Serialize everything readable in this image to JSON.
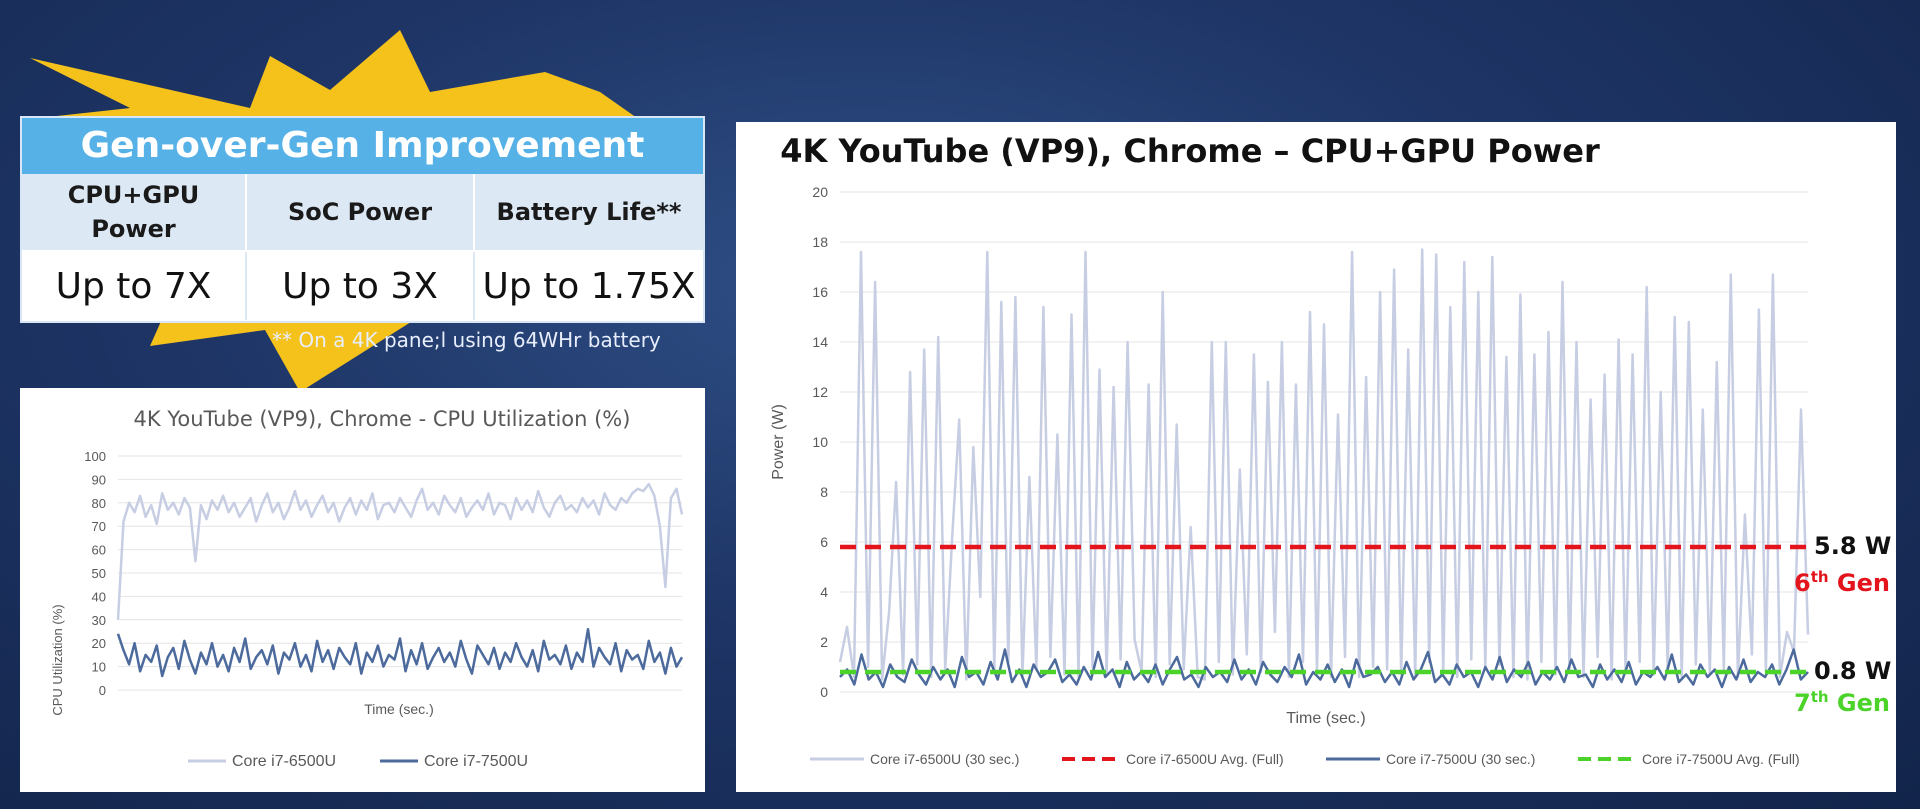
{
  "improvement": {
    "title": "Gen-over-Gen Improvement",
    "headers": [
      "CPU+GPU Power",
      "SoC Power",
      "Battery Life**"
    ],
    "values": [
      "Up to 7X",
      "Up to 3X",
      "Up to 1.75X"
    ],
    "footnote": "** On a 4K pane;l using 64WHr battery"
  },
  "colors": {
    "burst": "#f4c21b",
    "header_bar": "#56b1e7",
    "gen6_avg": "#e3141b",
    "gen7_avg": "#4bd32a",
    "series_light": "#c7cee3",
    "series_dark": "#4c6a9c"
  },
  "annotations": {
    "gen6_value": "5.8 W",
    "gen6_label_num": "6",
    "gen6_label_sup": "th",
    "gen6_label_gen": " Gen",
    "gen7_value": "0.8 W",
    "gen7_label_num": "7",
    "gen7_label_sup": "th",
    "gen7_label_gen": " Gen"
  },
  "chart_data": [
    {
      "type": "line",
      "title": "4K YouTube (VP9), Chrome - CPU Utilization (%)",
      "xlabel": "Time (sec.)",
      "ylabel": "CPU Utilization (%)",
      "ylim": [
        0,
        100
      ],
      "yticks": [
        0,
        10,
        20,
        30,
        40,
        50,
        60,
        70,
        80,
        90,
        100
      ],
      "grid": true,
      "legend_position": "bottom",
      "series": [
        {
          "name": "Core i7-6500U",
          "values": [
            30,
            72,
            80,
            76,
            83,
            74,
            79,
            71,
            84,
            77,
            80,
            75,
            82,
            78,
            55,
            79,
            73,
            81,
            77,
            83,
            76,
            80,
            74,
            78,
            82,
            72,
            79,
            84,
            76,
            80,
            73,
            78,
            85,
            77,
            81,
            74,
            79,
            83,
            76,
            80,
            72,
            78,
            82,
            75,
            81,
            77,
            84,
            73,
            79,
            80,
            76,
            82,
            78,
            74,
            81,
            86,
            77,
            80,
            75,
            83,
            79,
            76,
            82,
            74,
            78,
            81,
            77,
            84,
            75,
            80,
            79,
            73,
            82,
            77,
            81,
            76,
            85,
            78,
            74,
            80,
            83,
            77,
            79,
            76,
            82,
            78,
            81,
            75,
            84,
            79,
            77,
            82,
            80,
            84,
            86,
            85,
            88,
            83,
            70,
            44,
            82,
            86,
            75
          ]
        },
        {
          "name": "Core i7-7500U",
          "values": [
            24,
            17,
            11,
            20,
            8,
            15,
            12,
            19,
            6,
            14,
            18,
            9,
            21,
            13,
            7,
            16,
            11,
            20,
            10,
            15,
            8,
            18,
            12,
            22,
            9,
            14,
            17,
            11,
            19,
            7,
            16,
            13,
            20,
            10,
            15,
            8,
            21,
            12,
            17,
            9,
            18,
            14,
            11,
            20,
            7,
            16,
            12,
            19,
            10,
            15,
            13,
            22,
            8,
            17,
            11,
            20,
            9,
            14,
            18,
            12,
            16,
            10,
            21,
            13,
            7,
            19,
            15,
            11,
            18,
            9,
            16,
            12,
            20,
            14,
            10,
            17,
            8,
            21,
            13,
            15,
            11,
            19,
            9,
            16,
            12,
            26,
            10,
            18,
            14,
            11,
            20,
            8,
            17,
            13,
            15,
            9,
            21,
            12,
            16,
            7,
            18,
            10,
            14
          ]
        }
      ]
    },
    {
      "type": "line",
      "title": "4K YouTube (VP9), Chrome – CPU+GPU Power",
      "xlabel": "Time (sec.)",
      "ylabel": "Power (W)",
      "ylim": [
        0,
        20
      ],
      "yticks": [
        0,
        2,
        4,
        6,
        8,
        10,
        12,
        14,
        16,
        18,
        20
      ],
      "grid": true,
      "legend_position": "bottom",
      "series": [
        {
          "name": "Core i7-6500U (30 sec.)",
          "values": [
            1.2,
            2.6,
            0.6,
            17.6,
            1.0,
            16.4,
            0.5,
            3.2,
            8.4,
            0.7,
            12.8,
            1.1,
            13.7,
            0.6,
            14.2,
            0.9,
            6.2,
            10.9,
            0.5,
            9.8,
            3.8,
            17.6,
            0.8,
            15.6,
            1.2,
            15.8,
            0.6,
            8.6,
            0.9,
            15.4,
            1.4,
            10.3,
            0.7,
            15.1,
            0.6,
            17.6,
            1.0,
            12.9,
            0.7,
            12.2,
            1.3,
            14.0,
            2.1,
            0.8,
            12.3,
            0.6,
            16.0,
            1.1,
            10.7,
            0.9,
            6.6,
            0.6,
            0.5,
            14.0,
            1.2,
            14.0,
            0.7,
            8.9,
            1.5,
            13.5,
            0.8,
            12.4,
            2.4,
            14.0,
            0.6,
            12.3,
            1.2,
            15.2,
            0.8,
            14.7,
            0.6,
            11.1,
            1.4,
            17.6,
            0.6,
            12.6,
            1.0,
            16.0,
            0.9,
            16.9,
            0.7,
            13.7,
            0.6,
            17.7,
            1.2,
            17.5,
            0.8,
            15.4,
            0.6,
            17.2,
            1.3,
            16.0,
            0.9,
            17.4,
            1.1,
            13.4,
            0.6,
            15.9,
            0.5,
            13.5,
            1.2,
            14.4,
            0.7,
            16.4,
            0.9,
            14.0,
            0.6,
            11.7,
            1.4,
            12.7,
            0.5,
            14.1,
            0.8,
            13.5,
            1.2,
            16.2,
            0.7,
            12.0,
            0.9,
            15.0,
            0.6,
            14.8,
            1.1,
            11.3,
            0.7,
            13.2,
            0.9,
            16.7,
            0.6,
            7.1,
            1.5,
            15.3,
            0.8,
            16.7,
            0.6,
            2.4,
            1.6,
            11.3,
            2.3
          ]
        },
        {
          "name": "Core i7-6500U Avg. (Full)",
          "values": [
            5.8,
            5.8
          ]
        },
        {
          "name": "Core i7-7500U (30 sec.)",
          "values": [
            0.6,
            0.9,
            0.3,
            1.5,
            0.5,
            0.8,
            0.2,
            1.1,
            0.6,
            0.4,
            1.3,
            0.7,
            0.3,
            1.0,
            0.5,
            0.9,
            0.2,
            1.4,
            0.6,
            0.8,
            0.3,
            1.2,
            0.5,
            1.7,
            0.4,
            0.9,
            0.2,
            1.1,
            0.6,
            0.8,
            1.3,
            0.4,
            0.7,
            0.3,
            1.0,
            0.5,
            1.6,
            0.6,
            0.9,
            0.2,
            1.2,
            0.5,
            0.8,
            0.4,
            1.1,
            0.3,
            0.9,
            1.4,
            0.5,
            0.7,
            0.2,
            1.0,
            0.6,
            0.8,
            0.4,
            1.3,
            0.5,
            0.9,
            0.3,
            1.2,
            0.7,
            0.4,
            1.0,
            0.6,
            1.5,
            0.3,
            0.8,
            0.5,
            1.1,
            0.4,
            0.9,
            0.2,
            1.3,
            0.6,
            0.7,
            1.0,
            0.4,
            0.8,
            0.3,
            1.2,
            0.5,
            0.9,
            1.6,
            0.4,
            0.7,
            0.3,
            1.1,
            0.6,
            0.8,
            0.2,
            1.0,
            0.5,
            1.4,
            0.4,
            0.9,
            0.6,
            1.2,
            0.3,
            0.8,
            0.5,
            1.0,
            0.4,
            1.3,
            0.6,
            0.7,
            0.2,
            1.1,
            0.5,
            0.9,
            0.4,
            1.2,
            0.3,
            0.8,
            0.6,
            1.0,
            0.5,
            1.5,
            0.4,
            0.7,
            0.3,
            1.1,
            0.6,
            0.9,
            0.2,
            1.0,
            0.5,
            1.3,
            0.4,
            0.8,
            0.6,
            1.1,
            0.3,
            0.9,
            1.7,
            0.5,
            0.8
          ]
        },
        {
          "name": "Core i7-7500U Avg. (Full)",
          "values": [
            0.8,
            0.8
          ]
        }
      ]
    }
  ]
}
